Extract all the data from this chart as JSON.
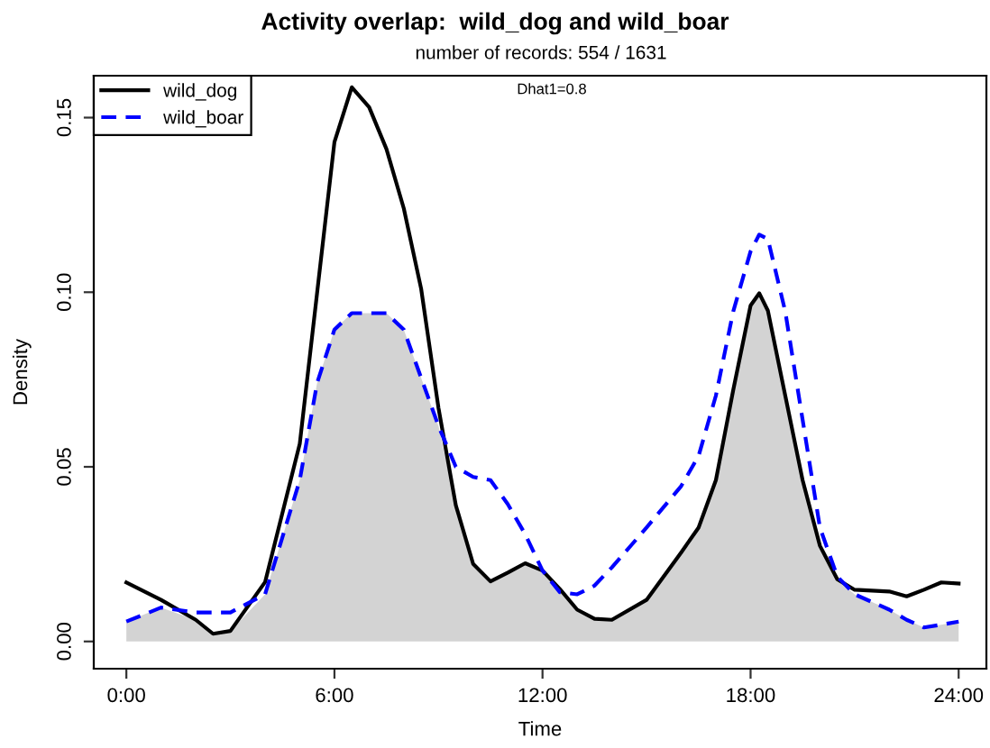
{
  "chart_data": {
    "type": "line",
    "title": "Activity overlap:  wild_dog and wild_boar",
    "subtitle": "number of records: 554 / 1631",
    "xlabel": "Time",
    "ylabel": "Density",
    "annotations": [
      "Dhat1=0.8"
    ],
    "x": [
      0,
      1,
      2,
      2.5,
      3,
      4,
      5,
      5.5,
      6,
      6.5,
      7,
      7.5,
      8,
      8.5,
      9,
      9.5,
      10,
      10.5,
      11,
      11.5,
      12,
      12.5,
      13,
      13.5,
      14,
      15,
      16,
      16.5,
      17,
      17.5,
      18,
      18.25,
      18.5,
      19,
      19.5,
      20,
      20.5,
      21,
      22,
      22.5,
      23,
      23.5,
      24
    ],
    "series": [
      {
        "type": "area",
        "color": "#d3d3d3",
        "values": [
          0.0057,
          0.0097,
          0.0062,
          0.0022,
          0.003,
          0.0135,
          0.0462,
          0.074,
          0.0893,
          0.094,
          0.094,
          0.094,
          0.0893,
          0.0755,
          0.0617,
          0.039,
          0.0222,
          0.0172,
          0.0197,
          0.0224,
          0.0203,
          0.0141,
          0.0091,
          0.0065,
          0.0062,
          0.0119,
          0.0255,
          0.0326,
          0.0462,
          0.072,
          0.0962,
          0.0997,
          0.0947,
          0.0704,
          0.0462,
          0.0274,
          0.0178,
          0.0135,
          0.0091,
          0.0062,
          0.004,
          0.0048,
          0.0057
        ]
      },
      {
        "name": "wild_dog",
        "color": "#000000",
        "line_style": "solid",
        "values": [
          0.0169,
          0.0119,
          0.0062,
          0.0022,
          0.003,
          0.017,
          0.0566,
          0.0998,
          0.143,
          0.1587,
          0.153,
          0.141,
          0.124,
          0.101,
          0.0669,
          0.039,
          0.0222,
          0.0172,
          0.0197,
          0.0224,
          0.0203,
          0.015,
          0.0091,
          0.0065,
          0.0062,
          0.0119,
          0.0255,
          0.0326,
          0.0462,
          0.072,
          0.0962,
          0.0997,
          0.0947,
          0.0704,
          0.0462,
          0.0274,
          0.0178,
          0.0148,
          0.0143,
          0.0129,
          0.0148,
          0.0169,
          0.0166
        ]
      },
      {
        "name": "wild_boar",
        "color": "#0000ff",
        "line_style": "dashed",
        "values": [
          0.0057,
          0.0097,
          0.0083,
          0.0083,
          0.0083,
          0.0135,
          0.0462,
          0.074,
          0.0893,
          0.094,
          0.094,
          0.094,
          0.0893,
          0.0755,
          0.0617,
          0.05,
          0.0471,
          0.0462,
          0.0393,
          0.0307,
          0.0203,
          0.0141,
          0.0135,
          0.016,
          0.0212,
          0.0326,
          0.0445,
          0.0531,
          0.0704,
          0.0945,
          0.1117,
          0.1165,
          0.1152,
          0.0945,
          0.0635,
          0.0326,
          0.0186,
          0.0135,
          0.0091,
          0.0062,
          0.004,
          0.0048,
          0.0057
        ]
      }
    ],
    "xlim": [
      -0.94,
      24.8
    ],
    "ylim": [
      -0.0078,
      0.162
    ],
    "xticks": [
      {
        "value": 0,
        "label": "0:00"
      },
      {
        "value": 6,
        "label": "6:00"
      },
      {
        "value": 12,
        "label": "12:00"
      },
      {
        "value": 18,
        "label": "18:00"
      },
      {
        "value": 24,
        "label": "24:00"
      }
    ],
    "yticks": [
      {
        "value": 0,
        "label": "0.00"
      },
      {
        "value": 0.05,
        "label": "0.05"
      },
      {
        "value": 0.1,
        "label": "0.10"
      },
      {
        "value": 0.15,
        "label": "0.15"
      }
    ],
    "grid": false,
    "legend": "top left",
    "marker": "none"
  }
}
